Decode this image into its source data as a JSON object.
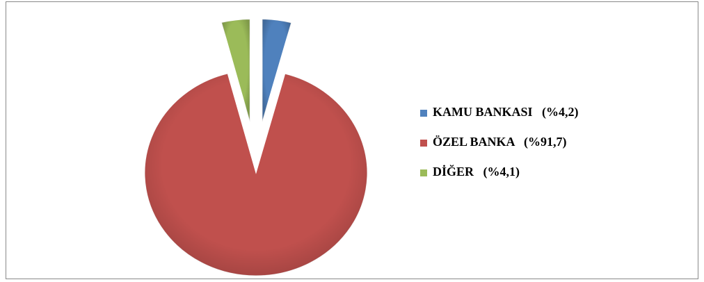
{
  "chart_data": {
    "type": "pie",
    "categories": [
      "KAMU BANKASI   (%4,2)",
      "ÖZEL BANKA   (%91,7)",
      "DİĞER   (%4,1)"
    ],
    "values": [
      4.2,
      91.7,
      4.1
    ],
    "colors": [
      "#4f81bd",
      "#c0504d",
      "#9bbb59"
    ],
    "legend": "right"
  }
}
